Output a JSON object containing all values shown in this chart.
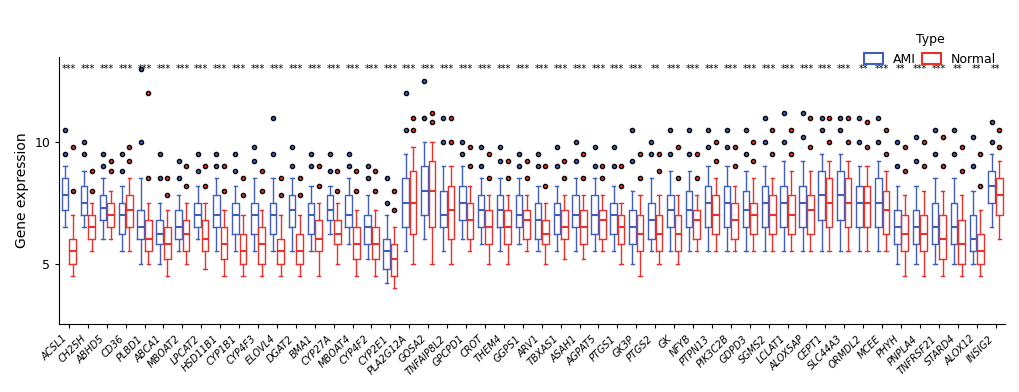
{
  "genes": [
    "ACSL1",
    "CH25H",
    "ABHD5",
    "CD36",
    "PLBD1",
    "ABCA1",
    "MBOAT2",
    "LPCAT2",
    "HSD11B1",
    "CYP1B1",
    "CYP4F3",
    "ELOVL4",
    "DGAT2",
    "BMA1",
    "CYP27A",
    "MBOAT4",
    "CYP4F2",
    "CYP2E1",
    "PLA2G12A",
    "GOSA2",
    "TNFAIP8L2",
    "GPCPD1",
    "CROT",
    "THEM4",
    "GGPS1",
    "ARV1",
    "TBXAS1",
    "ASAH1",
    "AGPAT5",
    "PTGS1",
    "GK3P",
    "PTGS2",
    "GK",
    "NFYB",
    "PTPN13",
    "PIK3C2B",
    "GDPD3",
    "SGMS2",
    "LCLAT1",
    "ALOX5AP",
    "CEPT1",
    "SLC44A3",
    "ORMDL2",
    "MCEE",
    "PHYH",
    "PNPLA4",
    "TNFRSF21",
    "STARD4",
    "ALOX12",
    "INSIG2"
  ],
  "significance": [
    "***",
    "***",
    "***",
    "***",
    "***",
    "***",
    "***",
    "***",
    "***",
    "***",
    "***",
    "***",
    "***",
    "***",
    "***",
    "***",
    "***",
    "***",
    "***",
    "***",
    "***",
    "***",
    "***",
    "***",
    "***",
    "***",
    "***",
    "***",
    "***",
    "***",
    "***",
    "**",
    "***",
    "***",
    "***",
    "***",
    "***",
    "***",
    "***",
    "***",
    "***",
    "***",
    "**",
    "***",
    "**",
    "***",
    "***",
    "**",
    "**",
    "**"
  ],
  "ami_data": [
    [
      6.5,
      7.2,
      7.8,
      8.5,
      9.0,
      9.5,
      10.5
    ],
    [
      6.5,
      7.0,
      7.5,
      8.2,
      8.8,
      9.5,
      10.0
    ],
    [
      6.0,
      6.8,
      7.3,
      7.8,
      8.5,
      9.0,
      9.5
    ],
    [
      5.5,
      6.2,
      7.0,
      7.5,
      8.2,
      8.8,
      9.5
    ],
    [
      5.0,
      6.0,
      6.5,
      7.2,
      8.5,
      10.0,
      13.0
    ],
    [
      5.0,
      5.8,
      6.2,
      6.8,
      7.5,
      8.5,
      9.5
    ],
    [
      5.5,
      6.0,
      6.5,
      7.2,
      7.8,
      8.5,
      9.2
    ],
    [
      6.0,
      6.5,
      7.0,
      7.5,
      8.2,
      8.8,
      9.5
    ],
    [
      5.5,
      6.5,
      7.0,
      7.8,
      8.5,
      9.0,
      9.5
    ],
    [
      5.5,
      6.2,
      7.0,
      7.5,
      8.2,
      8.8,
      9.5
    ],
    [
      5.5,
      6.2,
      7.0,
      7.5,
      8.5,
      9.2,
      9.8
    ],
    [
      5.5,
      6.2,
      7.0,
      7.5,
      8.5,
      9.5,
      11.0
    ],
    [
      5.5,
      6.5,
      7.2,
      7.8,
      8.5,
      9.0,
      9.8
    ],
    [
      5.5,
      6.2,
      7.0,
      7.5,
      8.2,
      9.0,
      9.5
    ],
    [
      6.2,
      6.8,
      7.2,
      7.8,
      8.2,
      8.8,
      9.5
    ],
    [
      5.8,
      6.5,
      7.0,
      7.8,
      8.5,
      9.0,
      9.5
    ],
    [
      5.2,
      5.8,
      6.5,
      7.0,
      7.8,
      8.5,
      9.0
    ],
    [
      4.2,
      4.8,
      5.5,
      6.0,
      7.0,
      7.5,
      8.5
    ],
    [
      5.5,
      6.5,
      7.5,
      8.5,
      9.5,
      10.5,
      12.0
    ],
    [
      6.0,
      7.0,
      8.0,
      9.0,
      10.0,
      11.0,
      12.5
    ],
    [
      5.5,
      6.5,
      7.0,
      8.0,
      9.0,
      10.0,
      11.0
    ],
    [
      6.0,
      6.8,
      7.5,
      8.2,
      9.0,
      9.5,
      10.0
    ],
    [
      5.8,
      6.5,
      7.2,
      7.8,
      8.5,
      9.0,
      9.8
    ],
    [
      5.5,
      6.5,
      7.2,
      7.8,
      8.5,
      9.2,
      9.8
    ],
    [
      5.8,
      6.5,
      7.0,
      7.8,
      8.5,
      9.0,
      9.5
    ],
    [
      5.5,
      6.0,
      6.8,
      7.5,
      8.2,
      9.0,
      9.5
    ],
    [
      5.5,
      6.2,
      7.0,
      7.5,
      8.2,
      9.0,
      9.8
    ],
    [
      5.5,
      6.5,
      7.0,
      7.8,
      8.5,
      9.2,
      10.0
    ],
    [
      5.5,
      6.2,
      7.0,
      7.8,
      8.5,
      9.0,
      9.8
    ],
    [
      5.5,
      6.2,
      7.0,
      7.5,
      8.2,
      9.0,
      9.8
    ],
    [
      5.0,
      5.8,
      6.5,
      7.2,
      8.0,
      9.2,
      10.5
    ],
    [
      5.5,
      6.0,
      6.8,
      7.5,
      8.5,
      9.5,
      10.0
    ],
    [
      5.5,
      6.5,
      7.2,
      7.8,
      8.8,
      9.5,
      10.5
    ],
    [
      5.5,
      6.5,
      7.2,
      8.0,
      8.8,
      9.5,
      10.5
    ],
    [
      5.5,
      6.5,
      7.5,
      8.2,
      9.0,
      9.8,
      10.5
    ],
    [
      5.5,
      6.5,
      7.5,
      8.2,
      9.0,
      9.8,
      10.5
    ],
    [
      5.5,
      6.5,
      7.2,
      8.0,
      8.8,
      9.5,
      10.5
    ],
    [
      5.5,
      6.5,
      7.5,
      8.2,
      9.0,
      10.0,
      11.0
    ],
    [
      5.5,
      6.5,
      7.5,
      8.2,
      9.2,
      10.0,
      11.2
    ],
    [
      5.5,
      6.5,
      7.5,
      8.2,
      9.2,
      10.2,
      11.2
    ],
    [
      5.5,
      6.8,
      7.8,
      8.8,
      9.5,
      10.5,
      11.0
    ],
    [
      5.5,
      6.8,
      7.8,
      8.8,
      9.5,
      10.5,
      11.0
    ],
    [
      5.5,
      6.5,
      7.5,
      8.2,
      9.0,
      10.0,
      11.0
    ],
    [
      5.5,
      6.5,
      7.5,
      8.5,
      9.2,
      10.0,
      11.0
    ],
    [
      5.0,
      5.8,
      6.5,
      7.2,
      8.2,
      9.0,
      10.0
    ],
    [
      5.0,
      5.8,
      6.5,
      7.2,
      8.2,
      9.2,
      10.2
    ],
    [
      5.0,
      5.8,
      6.5,
      7.5,
      8.5,
      9.5,
      10.5
    ],
    [
      5.0,
      5.8,
      6.5,
      7.5,
      8.5,
      9.5,
      10.5
    ],
    [
      5.0,
      5.5,
      6.0,
      7.0,
      8.0,
      9.0,
      10.2
    ],
    [
      6.5,
      7.5,
      8.2,
      8.8,
      9.5,
      10.0,
      10.8
    ]
  ],
  "normal_data": [
    [
      4.5,
      5.0,
      5.5,
      6.0,
      7.0,
      8.0,
      9.8
    ],
    [
      5.5,
      6.0,
      6.5,
      7.0,
      7.5,
      8.0,
      8.8
    ],
    [
      6.0,
      6.5,
      7.0,
      7.5,
      8.0,
      8.8,
      9.2
    ],
    [
      5.5,
      6.5,
      7.2,
      7.8,
      8.5,
      9.2,
      9.8
    ],
    [
      5.0,
      5.5,
      6.0,
      6.8,
      7.5,
      8.5,
      12.0
    ],
    [
      4.5,
      5.2,
      5.8,
      6.5,
      7.2,
      7.8,
      8.5
    ],
    [
      5.0,
      5.5,
      6.2,
      6.8,
      7.5,
      8.2,
      9.0
    ],
    [
      4.8,
      5.5,
      6.0,
      6.8,
      7.5,
      8.2,
      9.0
    ],
    [
      4.5,
      5.2,
      5.8,
      6.5,
      7.2,
      8.0,
      9.0
    ],
    [
      4.5,
      5.0,
      5.5,
      6.2,
      7.0,
      7.8,
      8.5
    ],
    [
      4.5,
      5.0,
      5.8,
      6.5,
      7.2,
      8.0,
      8.8
    ],
    [
      4.5,
      5.0,
      5.5,
      6.0,
      7.0,
      7.8,
      8.5
    ],
    [
      4.5,
      5.0,
      5.5,
      6.2,
      7.0,
      7.8,
      8.5
    ],
    [
      4.5,
      5.5,
      6.0,
      6.8,
      7.5,
      8.2,
      9.0
    ],
    [
      5.0,
      5.8,
      6.2,
      6.8,
      7.5,
      8.0,
      8.8
    ],
    [
      4.5,
      5.2,
      5.8,
      6.5,
      7.2,
      8.0,
      8.8
    ],
    [
      4.5,
      5.2,
      5.8,
      6.5,
      7.2,
      8.0,
      8.8
    ],
    [
      4.0,
      4.5,
      5.2,
      5.8,
      6.5,
      7.2,
      8.0
    ],
    [
      5.0,
      6.2,
      7.5,
      8.8,
      9.8,
      10.5,
      11.0
    ],
    [
      5.0,
      6.5,
      8.0,
      9.2,
      10.0,
      10.8,
      11.2
    ],
    [
      5.0,
      6.0,
      7.2,
      8.2,
      9.0,
      10.0,
      11.0
    ],
    [
      5.5,
      6.0,
      6.8,
      7.5,
      8.2,
      9.0,
      9.8
    ],
    [
      5.0,
      5.8,
      6.5,
      7.2,
      7.8,
      8.5,
      9.5
    ],
    [
      5.0,
      5.8,
      6.5,
      7.2,
      7.8,
      8.5,
      9.2
    ],
    [
      5.5,
      6.0,
      6.8,
      7.2,
      7.8,
      8.5,
      9.2
    ],
    [
      5.0,
      5.8,
      6.2,
      6.8,
      7.5,
      8.2,
      9.0
    ],
    [
      5.2,
      6.0,
      6.5,
      7.2,
      7.8,
      8.5,
      9.2
    ],
    [
      5.2,
      5.8,
      6.5,
      7.2,
      7.8,
      8.5,
      9.5
    ],
    [
      5.5,
      6.0,
      6.8,
      7.2,
      7.8,
      8.5,
      9.0
    ],
    [
      5.0,
      5.8,
      6.5,
      7.0,
      7.5,
      8.2,
      9.0
    ],
    [
      4.5,
      5.5,
      6.2,
      7.0,
      7.8,
      8.5,
      9.5
    ],
    [
      5.0,
      5.5,
      6.2,
      7.0,
      7.8,
      8.8,
      9.5
    ],
    [
      5.0,
      5.5,
      6.2,
      7.0,
      7.8,
      8.5,
      9.8
    ],
    [
      5.5,
      6.0,
      6.8,
      7.2,
      7.8,
      8.5,
      9.5
    ],
    [
      5.5,
      6.2,
      7.0,
      7.8,
      8.5,
      9.2,
      10.0
    ],
    [
      5.5,
      6.0,
      6.8,
      7.5,
      8.2,
      9.0,
      9.8
    ],
    [
      5.5,
      6.2,
      7.0,
      7.5,
      8.5,
      9.2,
      10.0
    ],
    [
      5.5,
      6.2,
      7.0,
      7.8,
      8.5,
      9.5,
      10.5
    ],
    [
      5.5,
      6.2,
      7.0,
      7.8,
      8.8,
      9.5,
      10.5
    ],
    [
      5.5,
      6.2,
      7.2,
      7.8,
      8.8,
      9.8,
      11.0
    ],
    [
      5.5,
      6.5,
      7.5,
      8.5,
      9.2,
      10.0,
      11.0
    ],
    [
      5.5,
      6.5,
      7.5,
      8.5,
      9.2,
      10.0,
      11.0
    ],
    [
      5.5,
      6.5,
      7.5,
      8.2,
      9.0,
      9.8,
      10.8
    ],
    [
      5.5,
      6.2,
      7.2,
      8.0,
      8.8,
      9.5,
      10.5
    ],
    [
      4.5,
      5.5,
      6.2,
      7.0,
      7.8,
      8.8,
      9.8
    ],
    [
      4.5,
      5.5,
      6.2,
      7.0,
      8.0,
      9.0,
      10.0
    ],
    [
      4.5,
      5.2,
      6.0,
      7.0,
      8.0,
      9.0,
      10.2
    ],
    [
      4.5,
      5.0,
      5.8,
      6.8,
      7.8,
      8.8,
      9.8
    ],
    [
      4.5,
      5.0,
      5.5,
      6.2,
      7.2,
      8.2,
      9.5
    ],
    [
      6.0,
      7.0,
      7.8,
      8.5,
      9.2,
      9.8,
      10.5
    ]
  ],
  "ami_color": "#3F5EBE",
  "normal_color": "#E8312B",
  "ylabel": "Gene expression",
  "title": "",
  "ylim": [
    2.5,
    13.5
  ],
  "yticks": [
    5,
    10
  ],
  "background": "#FFFFFF",
  "sig_fontsize": 7,
  "label_fontsize": 7,
  "ylabel_fontsize": 10
}
